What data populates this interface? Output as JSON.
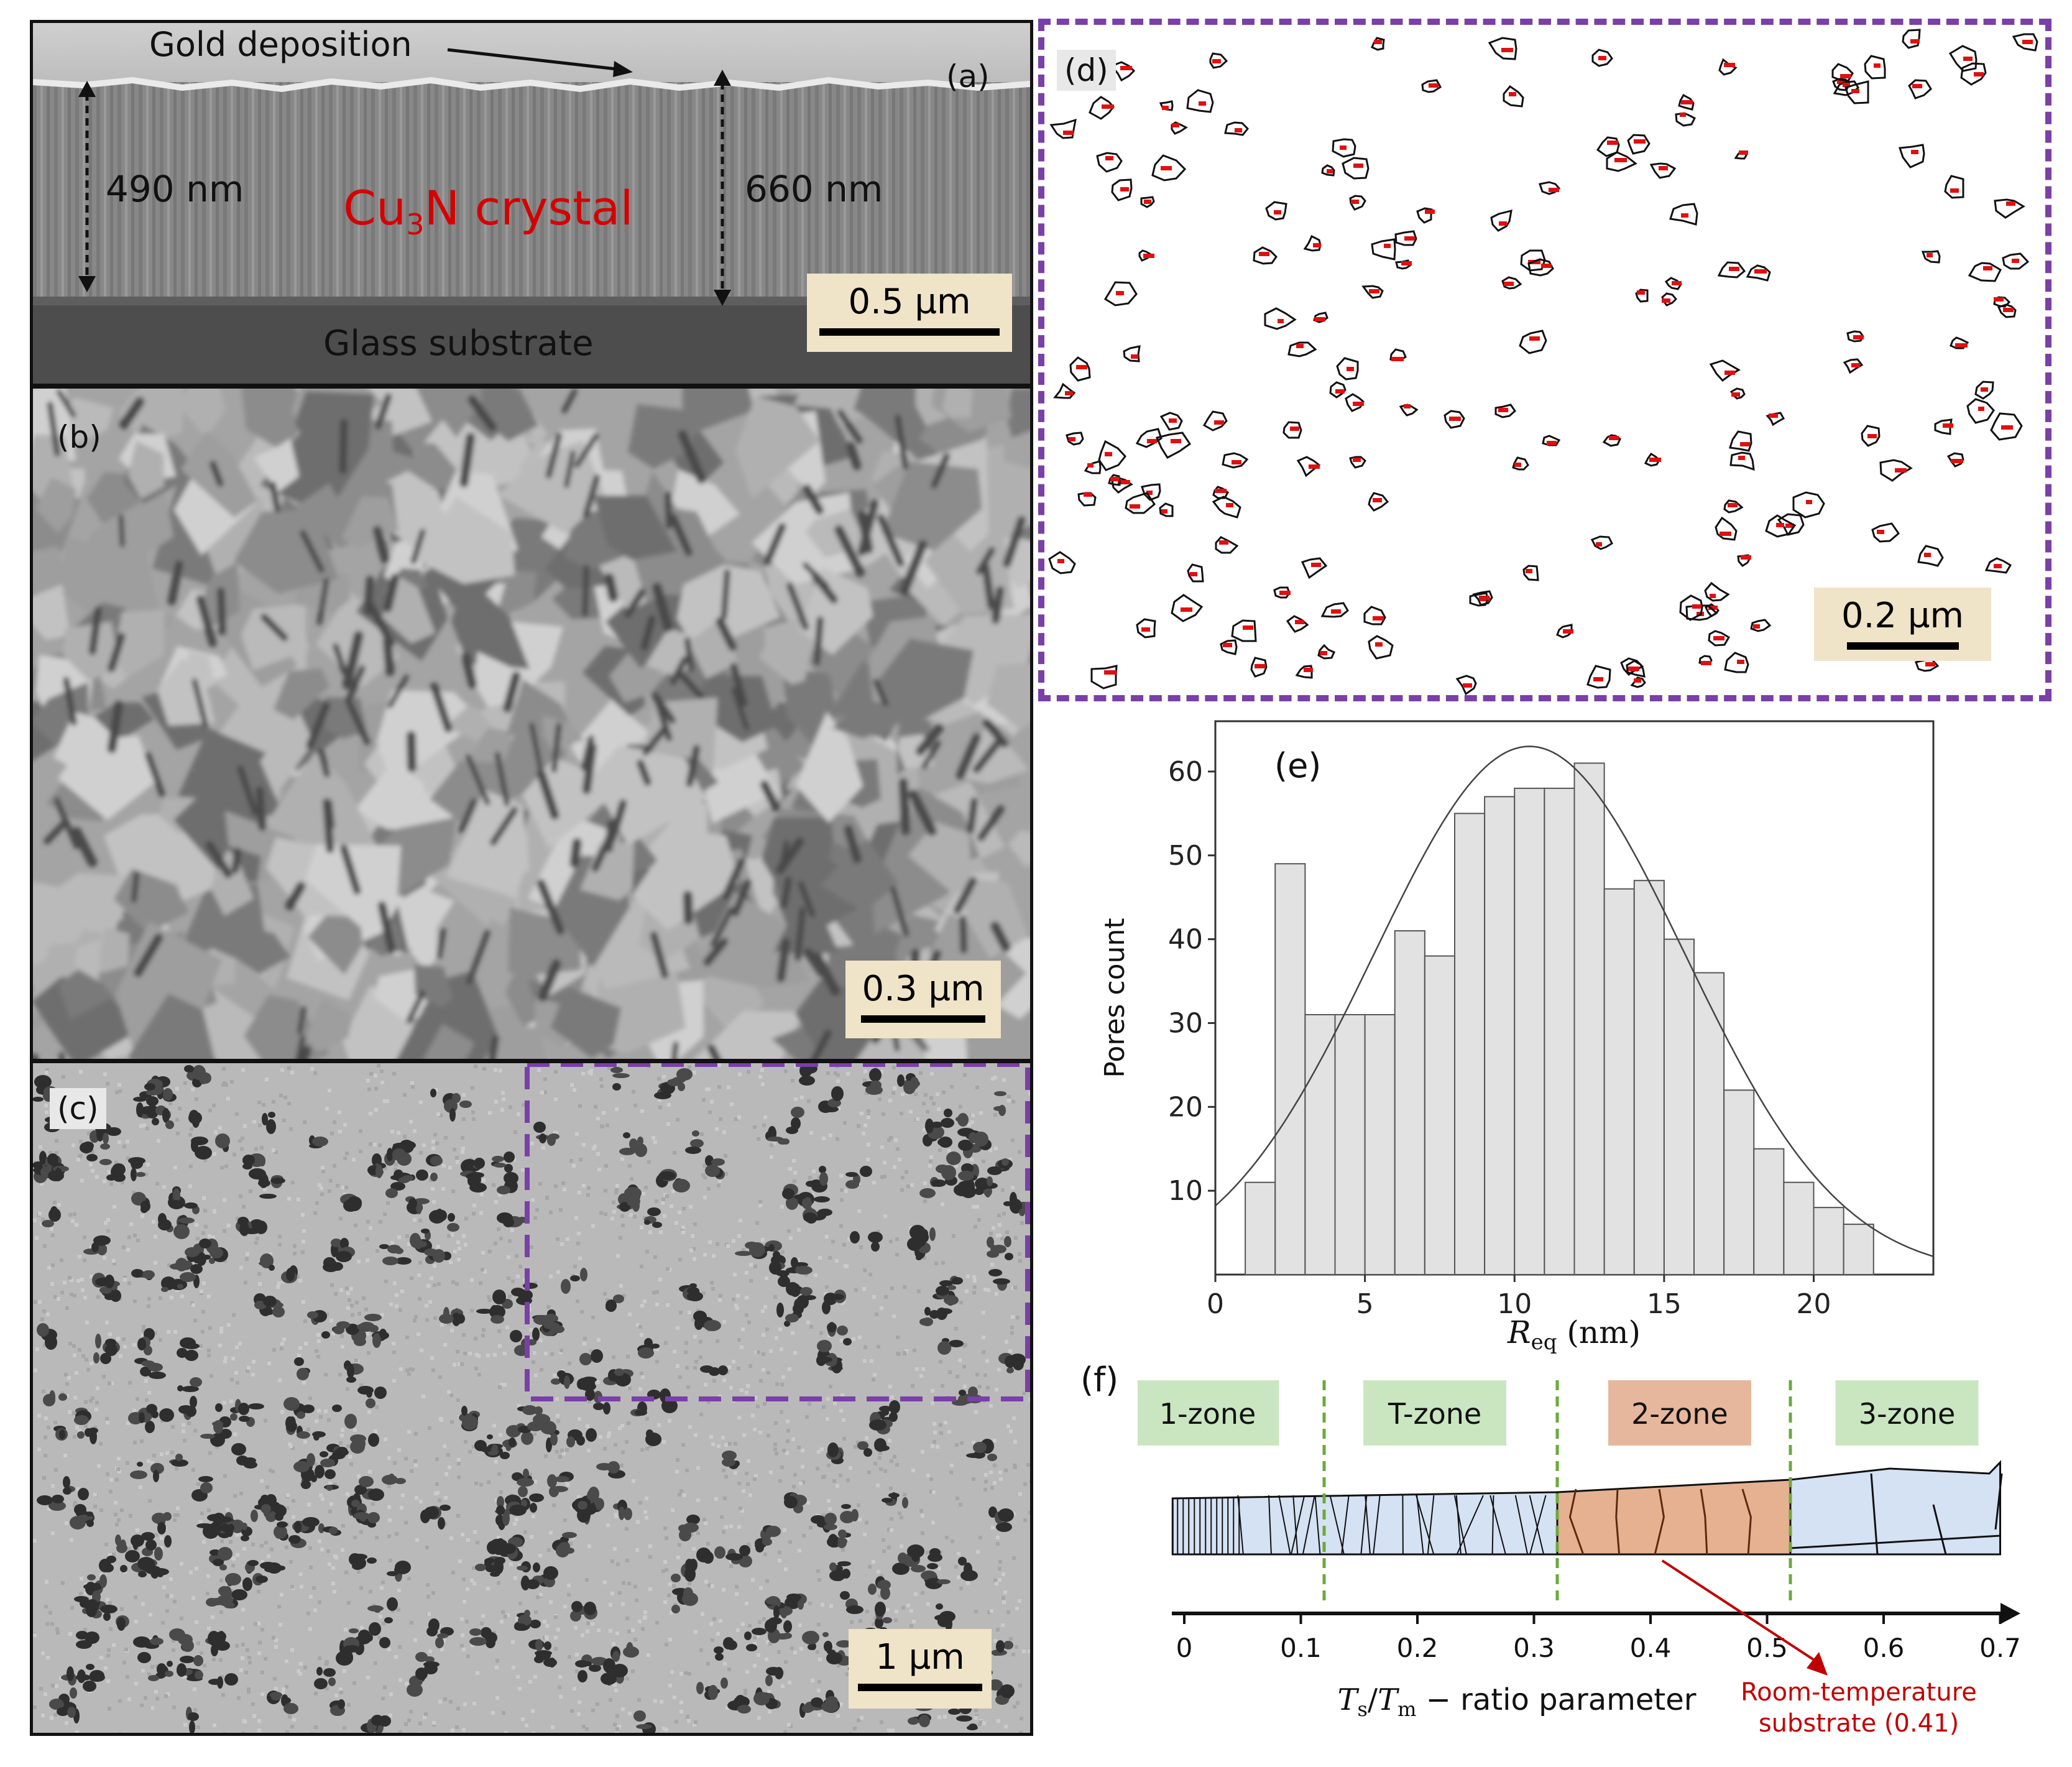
{
  "panel_a": {
    "label": "(a)",
    "gold_label": "Gold deposition",
    "left_thickness": "490 nm",
    "right_thickness": "660 nm",
    "crystal_main": "Cu",
    "crystal_sub": "3",
    "crystal_tail": "N crystal",
    "substrate_label": "Glass substrate",
    "scale": "0.5 µm"
  },
  "panel_b": {
    "label": "(b)",
    "scale": "0.3 µm"
  },
  "panel_c": {
    "label": "(c)",
    "scale": "1 µm"
  },
  "panel_d": {
    "label": "(d)",
    "scale": "0.2 µm"
  },
  "panel_e": {
    "label": "(e)",
    "chart_data": {
      "type": "bar",
      "ylabel": "Pores count",
      "xlabel_var": "R",
      "xlabel_sub": "eq",
      "xlabel_unit": " (nm)",
      "xlim": [
        0,
        24
      ],
      "ylim": [
        0,
        66
      ],
      "bin_width": 1,
      "bin_starts": [
        1,
        2,
        3,
        4,
        5,
        6,
        7,
        8,
        9,
        10,
        11,
        12,
        13,
        14,
        15,
        16,
        17,
        18,
        19,
        20,
        21
      ],
      "values": [
        11,
        49,
        31,
        31,
        31,
        41,
        38,
        55,
        57,
        58,
        58,
        61,
        46,
        47,
        40,
        36,
        22,
        15,
        11,
        8,
        6
      ],
      "x_ticks": [
        0,
        5,
        10,
        15,
        20
      ],
      "y_ticks": [
        10,
        20,
        30,
        40,
        50,
        60
      ],
      "fit_curve": {
        "type": "gaussian",
        "mean": 10.5,
        "sd": 5.2,
        "peak": 63
      }
    }
  },
  "panel_f": {
    "label": "(f)",
    "zones": [
      {
        "label": "1-zone",
        "color": "#c9e6c1"
      },
      {
        "label": "T-zone",
        "color": "#c9e6c1"
      },
      {
        "label": "2-zone",
        "color": "#e6b79c"
      },
      {
        "label": "3-zone",
        "color": "#c9e6c1"
      }
    ],
    "axis_ticks": [
      "0",
      "0.1",
      "0.2",
      "0.3",
      "0.4",
      "0.5",
      "0.6",
      "0.7"
    ],
    "axis_label_var": "T",
    "axis_label_sub1": "s",
    "axis_label_mid": "/",
    "axis_label_var2": "T",
    "axis_label_sub2": "m",
    "axis_label_tail": " − ratio parameter",
    "boundaries": [
      0.12,
      0.32,
      0.52
    ],
    "room_temp_value": 0.41,
    "room_temp_line1": "Room-temperature",
    "room_temp_line2": "substrate (0.41)",
    "colors": {
      "blue": "#d5e2f3",
      "orange": "#e6b190",
      "green_dash": "#6aaa3a",
      "red": "#c00000"
    }
  }
}
